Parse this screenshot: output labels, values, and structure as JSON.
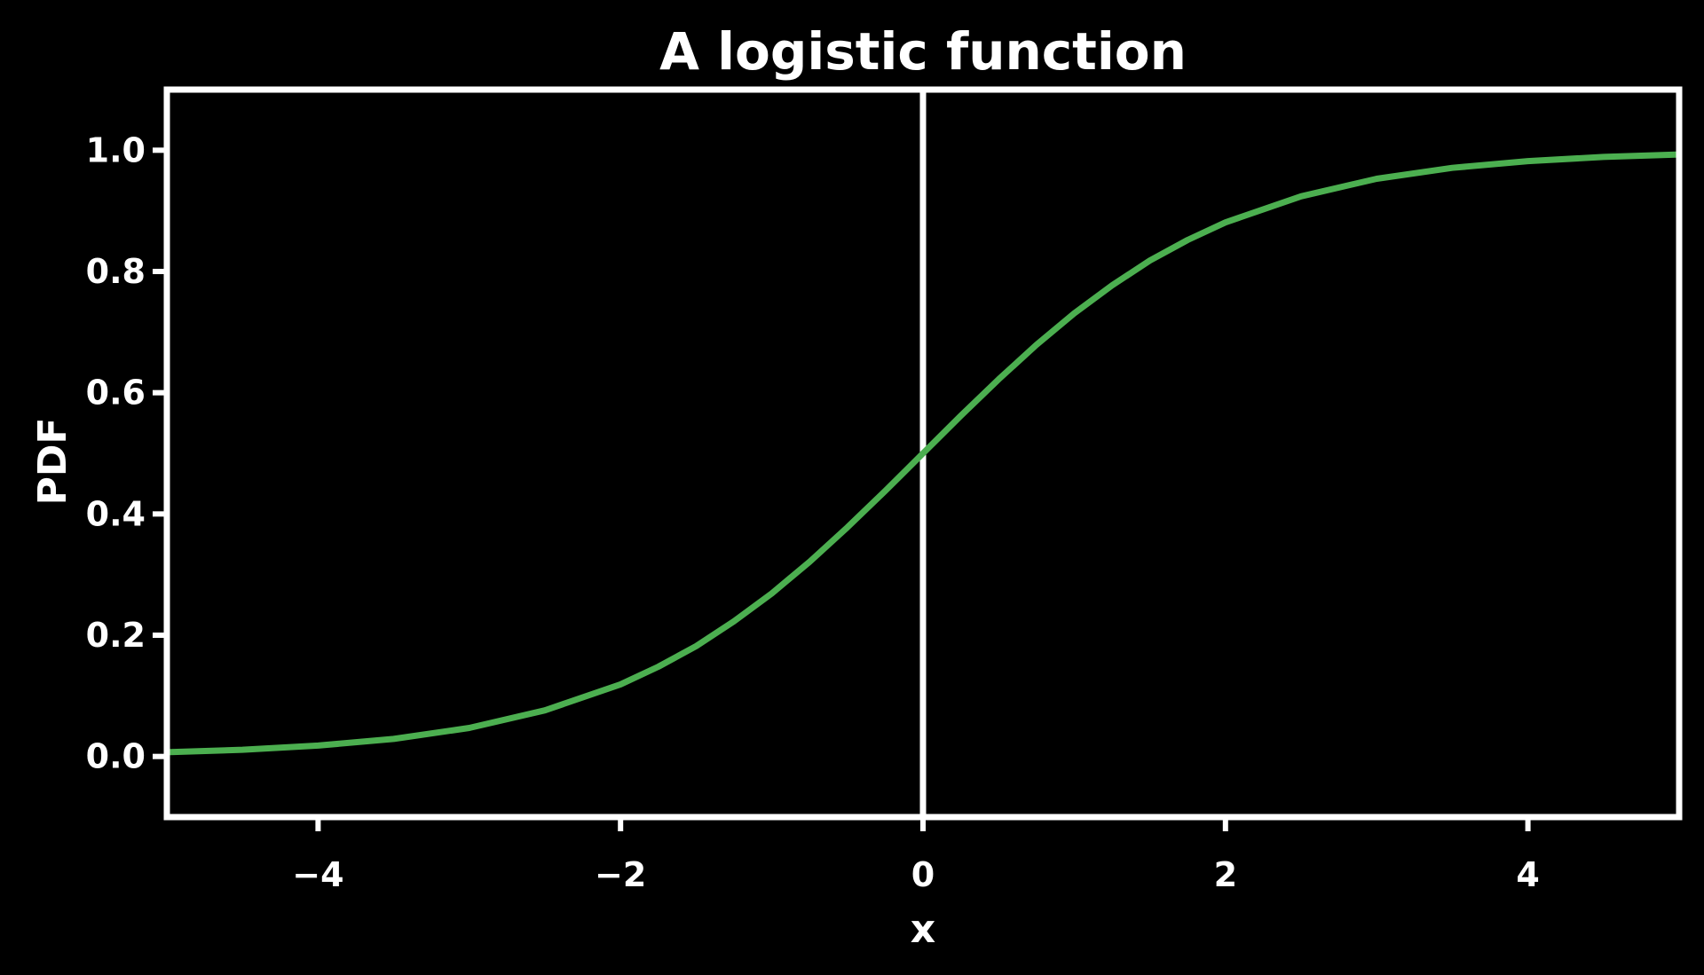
{
  "chart_data": {
    "type": "line",
    "title": "A logistic function",
    "xlabel": "x",
    "ylabel": "PDF",
    "xlim": [
      -5,
      5
    ],
    "ylim": [
      -0.1,
      1.1
    ],
    "grid": false,
    "background_color": "#000000",
    "axis_color": "#ffffff",
    "x_ticks": [
      -4,
      -2,
      0,
      2,
      4
    ],
    "x_tick_labels": [
      "−4",
      "−2",
      "0",
      "2",
      "4"
    ],
    "y_ticks": [
      0.0,
      0.2,
      0.4,
      0.6,
      0.8,
      1.0
    ],
    "y_tick_labels": [
      "0.0",
      "0.2",
      "0.4",
      "0.6",
      "0.8",
      "1.0"
    ],
    "reference_lines": [
      {
        "orientation": "vertical",
        "x": 0
      }
    ],
    "series": [
      {
        "color": "#4caf50",
        "x": [
          -5.0,
          -4.5,
          -4.0,
          -3.5,
          -3.0,
          -2.5,
          -2.0,
          -1.75,
          -1.5,
          -1.25,
          -1.0,
          -0.75,
          -0.5,
          -0.25,
          0.0,
          0.25,
          0.5,
          0.75,
          1.0,
          1.25,
          1.5,
          1.75,
          2.0,
          2.5,
          3.0,
          3.5,
          4.0,
          4.5,
          5.0
        ],
        "y": [
          0.007,
          0.011,
          0.018,
          0.029,
          0.047,
          0.076,
          0.119,
          0.148,
          0.182,
          0.223,
          0.269,
          0.321,
          0.378,
          0.438,
          0.5,
          0.562,
          0.622,
          0.679,
          0.731,
          0.777,
          0.818,
          0.852,
          0.881,
          0.924,
          0.953,
          0.971,
          0.982,
          0.989,
          0.993
        ]
      }
    ]
  }
}
